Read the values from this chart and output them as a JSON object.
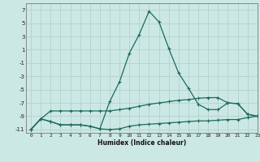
{
  "xlabel": "Humidex (Indice chaleur)",
  "bg_color": "#cce8e4",
  "grid_color": "#b8d4d0",
  "line_color": "#1a6b5a",
  "xlim": [
    -0.5,
    23
  ],
  "ylim": [
    -11.5,
    8
  ],
  "yticks": [
    7,
    5,
    3,
    1,
    -1,
    -3,
    -5,
    -7,
    -9,
    -11
  ],
  "xticks": [
    0,
    1,
    2,
    3,
    4,
    5,
    6,
    7,
    8,
    9,
    10,
    11,
    12,
    13,
    14,
    15,
    16,
    17,
    18,
    19,
    20,
    21,
    22,
    23
  ],
  "line1_x": [
    0,
    1,
    2,
    3,
    4,
    5,
    6,
    7,
    8,
    9,
    10,
    11,
    12,
    13,
    14,
    15,
    16,
    17,
    18,
    19,
    20,
    21,
    22,
    23
  ],
  "line1_y": [
    -11,
    -9.4,
    -9.8,
    -10.3,
    -10.3,
    -10.3,
    -10.5,
    -10.9,
    -11,
    -10.9,
    -10.5,
    -10.3,
    -10.2,
    -10.1,
    -10.0,
    -9.9,
    -9.8,
    -9.7,
    -9.7,
    -9.6,
    -9.5,
    -9.5,
    -9.2,
    -9.0
  ],
  "line2_x": [
    0,
    1,
    2,
    3,
    4,
    5,
    6,
    7,
    8,
    9,
    10,
    11,
    12,
    13,
    14,
    15,
    16,
    17,
    18,
    19,
    20,
    21,
    22,
    23
  ],
  "line2_y": [
    -11,
    -9.4,
    -9.8,
    -10.3,
    -10.3,
    -10.3,
    -10.5,
    -10.9,
    -6.8,
    -3.8,
    0.5,
    3.3,
    6.8,
    5.2,
    1.2,
    -2.5,
    -4.8,
    -7.2,
    -8.0,
    -8.0,
    -7.0,
    -7.1,
    -8.7,
    -9.0
  ],
  "line3_x": [
    0,
    1,
    2,
    3,
    4,
    5,
    6,
    7,
    8,
    9,
    10,
    11,
    12,
    13,
    14,
    15,
    16,
    17,
    18,
    19,
    20,
    21,
    22,
    23
  ],
  "line3_y": [
    -11,
    -9.4,
    -8.2,
    -8.2,
    -8.2,
    -8.2,
    -8.2,
    -8.2,
    -8.2,
    -8.0,
    -7.8,
    -7.5,
    -7.2,
    -7.0,
    -6.8,
    -6.6,
    -6.5,
    -6.3,
    -6.2,
    -6.2,
    -7.0,
    -7.1,
    -8.7,
    -9.0
  ]
}
